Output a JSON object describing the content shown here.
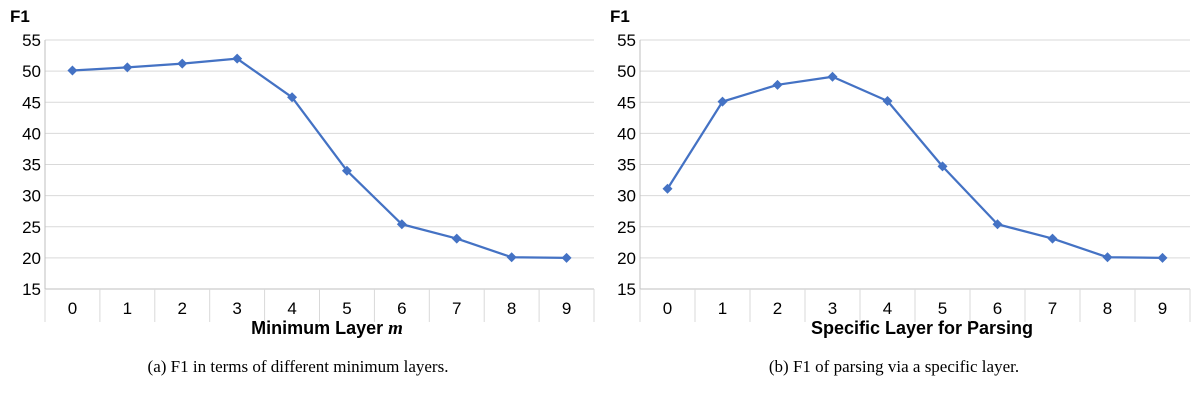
{
  "chart_data": [
    {
      "type": "line",
      "ylabel": "F1",
      "xlabel_text": "Minimum Layer ",
      "xlabel_var": "m",
      "caption": "(a) F1 in terms of different minimum layers.",
      "categories": [
        "0",
        "1",
        "2",
        "3",
        "4",
        "5",
        "6",
        "7",
        "8",
        "9"
      ],
      "ylim": [
        15,
        55
      ],
      "yticks": [
        15,
        20,
        25,
        30,
        35,
        40,
        45,
        50,
        55
      ],
      "grid": true,
      "series": [
        {
          "values": [
            50.1,
            50.6,
            51.2,
            52.0,
            45.8,
            34.0,
            25.4,
            23.1,
            20.1,
            20.0
          ]
        }
      ],
      "line_color": "#4472C4"
    },
    {
      "type": "line",
      "ylabel": "F1",
      "xlabel_text": "Specific Layer for Parsing",
      "xlabel_var": "",
      "caption": "(b) F1 of parsing via a specific layer.",
      "categories": [
        "0",
        "1",
        "2",
        "3",
        "4",
        "5",
        "6",
        "7",
        "8",
        "9"
      ],
      "ylim": [
        15,
        55
      ],
      "yticks": [
        15,
        20,
        25,
        30,
        35,
        40,
        45,
        50,
        55
      ],
      "grid": true,
      "series": [
        {
          "values": [
            31.1,
            45.1,
            47.8,
            49.1,
            45.2,
            34.7,
            25.4,
            23.1,
            20.1,
            20.0
          ]
        }
      ],
      "line_color": "#4472C4"
    }
  ]
}
